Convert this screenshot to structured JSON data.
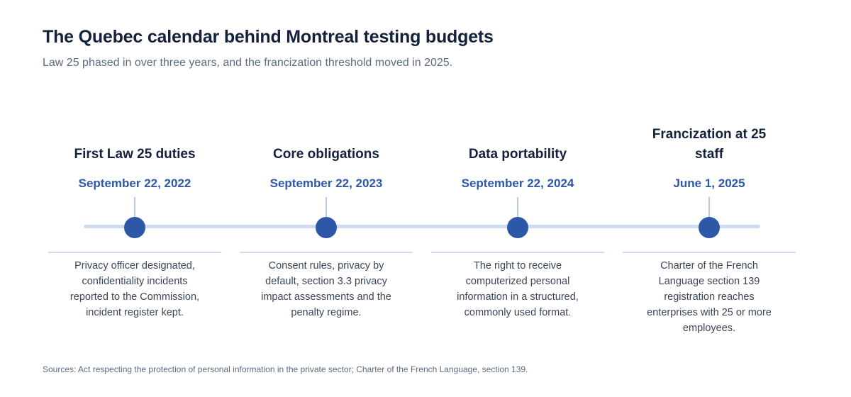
{
  "title": "The Quebec calendar behind Montreal testing budgets",
  "subtitle": "Law 25 phased in over three years, and the francization threshold moved in 2025.",
  "milestones": [
    {
      "heading": "First Law 25 duties",
      "date": "September 22, 2022",
      "description": "Privacy officer designated, confidentiality incidents reported to the Commission, incident register kept."
    },
    {
      "heading": "Core obligations",
      "date": "September 22, 2023",
      "description": "Consent rules, privacy by default, section 3.3 privacy impact assessments and the penalty regime."
    },
    {
      "heading": "Data portability",
      "date": "September 22, 2024",
      "description": "The right to receive computerized personal information in a structured, commonly used format."
    },
    {
      "heading": "Francization at 25 staff",
      "date": "June 1, 2025",
      "description": "Charter of the French Language section 139 registration reaches enterprises with 25 or more employees."
    }
  ],
  "source": "Sources: Act respecting the protection of personal information in the private sector; Charter of the French Language, section 139.",
  "colors": {
    "accent": "#2d58a8",
    "heading": "#14213d",
    "track": "#cfdcf0"
  }
}
